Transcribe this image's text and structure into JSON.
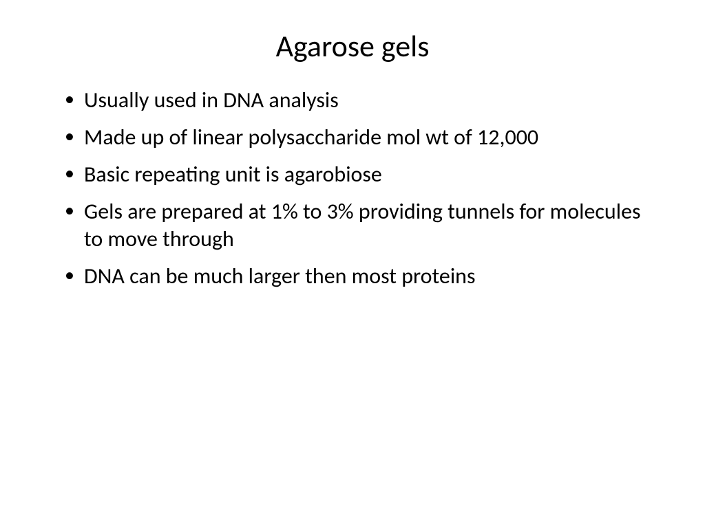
{
  "slide": {
    "title": "Agarose gels",
    "title_fontsize": 44,
    "title_color": "#000000",
    "background_color": "#ffffff",
    "body_fontsize": 32,
    "body_color": "#000000",
    "bullets": [
      "Usually used in DNA analysis",
      "Made up of linear polysaccharide mol wt of 12,000",
      "Basic repeating unit is agarobiose",
      "Gels are prepared at 1% to 3% providing tunnels for molecules to move through",
      "DNA can be much larger then most proteins"
    ]
  }
}
